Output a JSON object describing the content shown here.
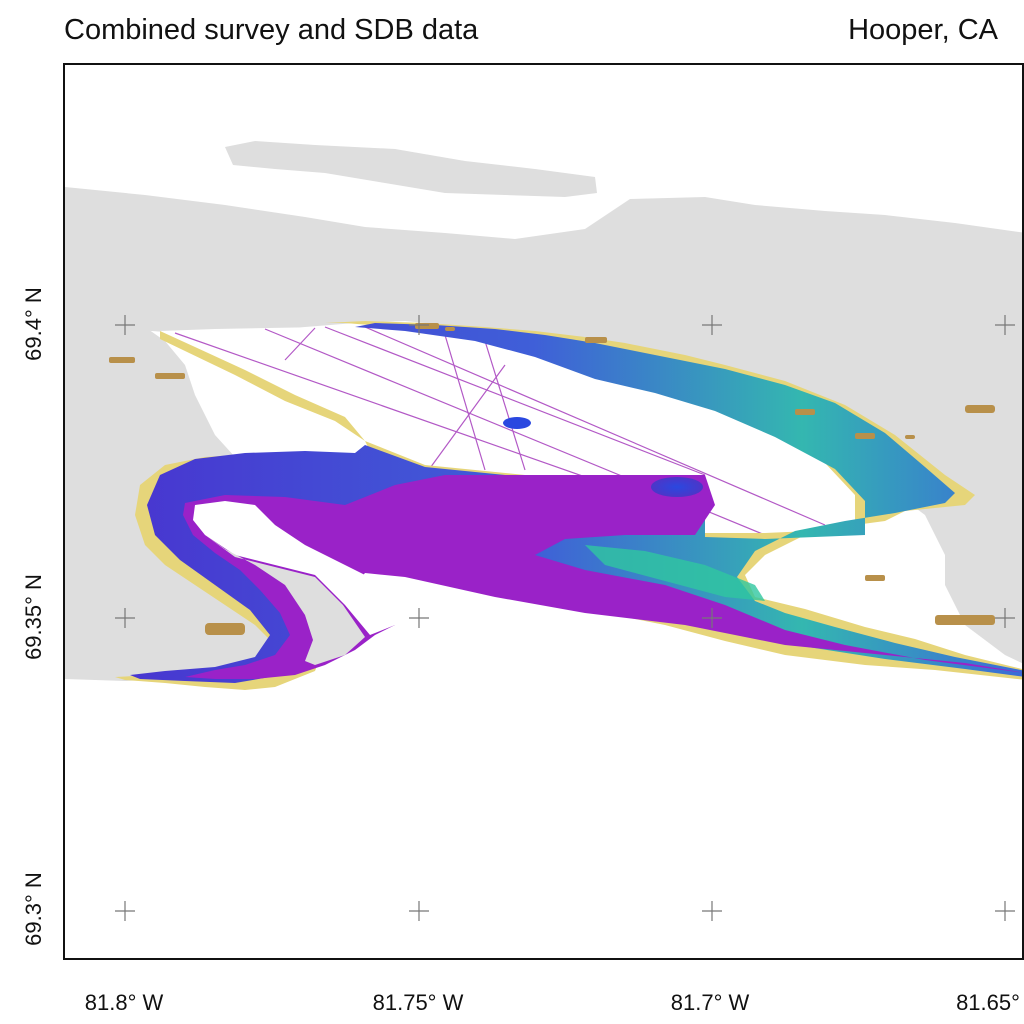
{
  "header": {
    "title": "Combined survey and SDB data",
    "location": "Hooper, CA"
  },
  "map": {
    "type": "bathymetry map",
    "x_ticks": [
      "81.8° W",
      "81.75° W",
      "81.7° W",
      "81.65°"
    ],
    "y_ticks": [
      "69.4° N",
      "69.35° N",
      "69.3° N"
    ],
    "colors": {
      "land": "#dedede",
      "deep": "#9a22c8",
      "mid_deep": "#4a3bd8",
      "mid": "#3a8fd0",
      "shallow": "#2fc7a0",
      "very_shallow": "#e6d57a",
      "intertidal": "#b8904a",
      "survey_track": "#a030b8"
    }
  }
}
